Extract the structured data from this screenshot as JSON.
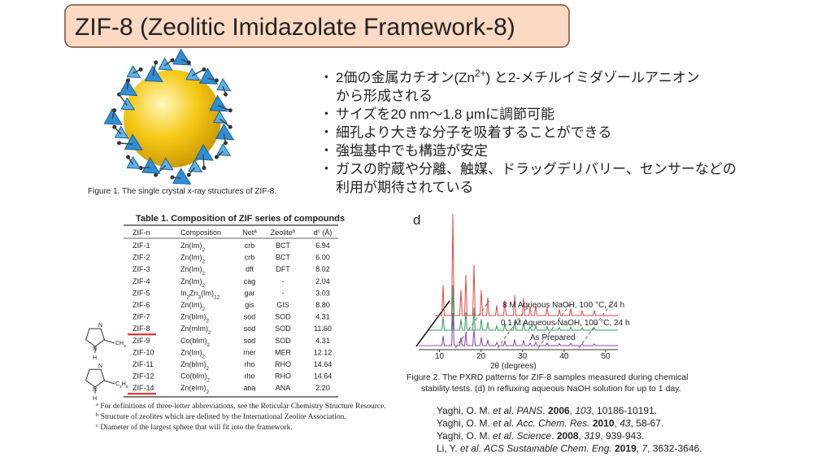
{
  "title": "ZIF-8 (Zeolitic Imidazolate Framework-8)",
  "bullet_marker": "・",
  "bullets": [
    [
      [
        {
          "text": "2価の金属カチオン(Zn"
        },
        {
          "text": "2+",
          "style": "sup"
        },
        {
          "text": ") と2-メチルイミダゾールアニオン"
        }
      ],
      [
        {
          "text": "から形成される"
        }
      ]
    ],
    [
      [
        {
          "text": "サイズを20 nm～1.8 μmに調節可能"
        }
      ]
    ],
    [
      [
        {
          "text": "細孔より大きな分子を吸着することができる"
        }
      ]
    ],
    [
      [
        {
          "text": "強塩基中でも構造が安定"
        }
      ]
    ],
    [
      [
        {
          "text": "ガスの貯蔵や分離、触媒、ドラッグデリバリー、センサーなどの"
        }
      ],
      [
        {
          "text": "利用が期待されている"
        }
      ]
    ]
  ],
  "figure1": {
    "caption": "Figure 1.   The single crystal x-ray structures of ZIF-8."
  },
  "table": {
    "title": "Table 1.   Composition of ZIF series of compounds",
    "header": [
      [
        {
          "text": "ZIF-n"
        }
      ],
      [
        {
          "text": "Composition"
        }
      ],
      [
        {
          "text": "Net"
        },
        {
          "text": "a",
          "style": "sup"
        }
      ],
      [
        {
          "text": "Zeolite"
        },
        {
          "text": "b",
          "style": "sup"
        }
      ],
      [
        {
          "text": "d"
        },
        {
          "text": "c",
          "style": "sup"
        },
        {
          "text": " (Å)"
        }
      ]
    ],
    "rows": [
      [
        "ZIF-1",
        [
          {
            "text": "Zn(Im)"
          },
          {
            "text": "2",
            "style": "sub"
          }
        ],
        "crb",
        "BCT",
        "6.94"
      ],
      [
        "ZIF-2",
        [
          {
            "text": "Zn(Im)"
          },
          {
            "text": "2",
            "style": "sub"
          }
        ],
        "crb",
        "BCT",
        "6.00"
      ],
      [
        "ZIF-3",
        [
          {
            "text": "Zn(Im)"
          },
          {
            "text": "2",
            "style": "sub"
          }
        ],
        "dft",
        "DFT",
        "8.02"
      ],
      [
        "ZIF-4",
        [
          {
            "text": "Zn(Im)"
          },
          {
            "text": "2",
            "style": "sub"
          }
        ],
        "cag",
        "-",
        "2.04"
      ],
      [
        "ZIF-5",
        [
          {
            "text": "In"
          },
          {
            "text": "2",
            "style": "sub"
          },
          {
            "text": "Zn"
          },
          {
            "text": "3",
            "style": "sub"
          },
          {
            "text": "(Im)"
          },
          {
            "text": "12",
            "style": "sub"
          }
        ],
        "gar",
        "-",
        "3.03"
      ],
      [
        "ZIF-6",
        [
          {
            "text": "Zn(Im)"
          },
          {
            "text": "2",
            "style": "sub"
          }
        ],
        "gis",
        "GIS",
        "8.80"
      ],
      [
        "ZIF-7",
        [
          {
            "text": "Zn(bIm)"
          },
          {
            "text": "2",
            "style": "sub"
          }
        ],
        "sod",
        "SOD",
        "4.31"
      ],
      [
        "ZIF-8",
        [
          {
            "text": "Zn(mIm)"
          },
          {
            "text": "2",
            "style": "sub"
          }
        ],
        "sod",
        "SOD",
        "11.60"
      ],
      [
        "ZIF-9",
        [
          {
            "text": "Co(bIm)"
          },
          {
            "text": "2",
            "style": "sub"
          }
        ],
        "sod",
        "SOD",
        "4.31"
      ],
      [
        "ZIF-10",
        [
          {
            "text": "Zn(Im)"
          },
          {
            "text": "2",
            "style": "sub"
          }
        ],
        "mer",
        "MER",
        "12.12"
      ],
      [
        "ZIF-11",
        [
          {
            "text": "Zn(bIm)"
          },
          {
            "text": "2",
            "style": "sub"
          }
        ],
        "rho",
        "RHO",
        "14.64"
      ],
      [
        "ZIF-12",
        [
          {
            "text": "Co(bIm)"
          },
          {
            "text": "2",
            "style": "sub"
          }
        ],
        "rho",
        "RHO",
        "14.64"
      ],
      [
        "ZIF-14",
        [
          {
            "text": "Zn(eIm)"
          },
          {
            "text": "2",
            "style": "sub"
          }
        ],
        "ana",
        "ANA",
        "2.20"
      ]
    ],
    "underlined_rows": [
      7,
      12
    ],
    "footnotes": [
      [
        {
          "text": "a",
          "style": "sup"
        },
        {
          "text": " For definitions of three-letter abbreviations, see the Reticular Chemistry Structure Resource."
        }
      ],
      [
        {
          "text": "b",
          "style": "sup"
        },
        {
          "text": " Structure of zeolites which are defined by the International Zeolite Association."
        }
      ],
      [
        {
          "text": "c",
          "style": "sup"
        },
        {
          "text": " Diameter of the largest sphere that will fit into the framework."
        }
      ]
    ]
  },
  "structures": [
    {
      "labels": [
        [
          {
            "text": "N"
          }
        ],
        [
          {
            "text": "CH"
          },
          {
            "text": "3",
            "style": "sub"
          }
        ],
        [
          {
            "text": "N"
          }
        ],
        [
          {
            "text": "H"
          }
        ]
      ]
    },
    {
      "labels": [
        [
          {
            "text": "N"
          }
        ],
        [
          {
            "text": "C"
          },
          {
            "text": "2",
            "style": "sub"
          },
          {
            "text": "H"
          },
          {
            "text": "5",
            "style": "sub"
          }
        ],
        [
          {
            "text": "N"
          }
        ],
        [
          {
            "text": "H"
          }
        ]
      ]
    }
  ],
  "figure2": {
    "panel": "d",
    "xlabel": "2θ (degrees)",
    "xlim": [
      5,
      50
    ],
    "xticks": [
      10,
      20,
      30,
      40,
      50
    ],
    "traces": [
      {
        "name": "8 M Aqueous NaOH, 100 °C, 24 h",
        "color": "#e8474a"
      },
      {
        "name": "0.1 M Aqueous NaOH, 100 °C, 24 h",
        "color": "#2e9e5b"
      },
      {
        "name": "As Prepared",
        "color": "#8e44ad"
      }
    ],
    "caption": [
      "Figure 2.    The PXRD patterns for ZIF-8 samples measured during chemical",
      "stability tests.    (d) In refluxing aqueous NaOH solution for up to 1 day."
    ]
  },
  "references": [
    [
      {
        "text": "Yaghi, O. M. "
      },
      {
        "text": "et al",
        "style": "i"
      },
      {
        "text": ". "
      },
      {
        "text": "PANS",
        "style": "i"
      },
      {
        "text": ". "
      },
      {
        "text": "2006",
        "style": "b"
      },
      {
        "text": ", "
      },
      {
        "text": "103",
        "style": "i"
      },
      {
        "text": ", 10186-10191."
      }
    ],
    [
      {
        "text": "Yaghi, O. M. "
      },
      {
        "text": "et al",
        "style": "i"
      },
      {
        "text": ". "
      },
      {
        "text": "Acc. Chem. Res.",
        "style": "i"
      },
      {
        "text": " "
      },
      {
        "text": "2010",
        "style": "b"
      },
      {
        "text": ", "
      },
      {
        "text": "43",
        "style": "i"
      },
      {
        "text": ", 58-67."
      }
    ],
    [
      {
        "text": "Yaghi, O. M. "
      },
      {
        "text": "et al",
        "style": "i"
      },
      {
        "text": ". "
      },
      {
        "text": "Science",
        "style": "i"
      },
      {
        "text": ". "
      },
      {
        "text": "2008",
        "style": "b"
      },
      {
        "text": ", "
      },
      {
        "text": "319",
        "style": "i"
      },
      {
        "text": ", 939-943."
      }
    ],
    [
      {
        "text": "Li, Y. "
      },
      {
        "text": "et al",
        "style": "i"
      },
      {
        "text": ". "
      },
      {
        "text": "ACS Sustainable Chem. Eng.",
        "style": "i"
      },
      {
        "text": " "
      },
      {
        "text": "2019",
        "style": "b"
      },
      {
        "text": ", "
      },
      {
        "text": "7",
        "style": "i"
      },
      {
        "text": ", 3632-3646."
      }
    ]
  ]
}
